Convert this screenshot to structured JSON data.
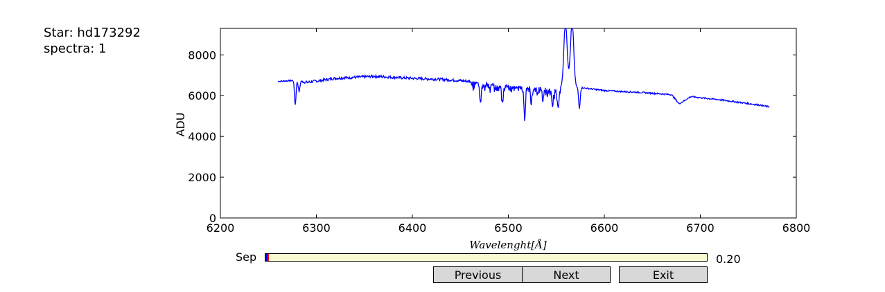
{
  "header": {
    "star_label": "Star: hd173292",
    "spectra_label": "spectra: 1"
  },
  "chart_data": {
    "type": "line",
    "title": "",
    "xlabel": "Wavelenght[Å]",
    "ylabel": "ADU",
    "xlim": [
      6200,
      6800
    ],
    "ylim": [
      0,
      9300
    ],
    "xticks": [
      6200,
      6300,
      6400,
      6500,
      6600,
      6700,
      6800
    ],
    "yticks": [
      0,
      2000,
      4000,
      6000,
      8000
    ],
    "grid": false,
    "series": [
      {
        "color": "#0000ff",
        "x_range": [
          6260,
          6772
        ],
        "keypoints": [
          [
            6260,
            6700
          ],
          [
            6278,
            6750
          ],
          [
            6290,
            6650
          ],
          [
            6320,
            6850
          ],
          [
            6360,
            6950
          ],
          [
            6400,
            6850
          ],
          [
            6430,
            6800
          ],
          [
            6460,
            6700
          ],
          [
            6500,
            6500
          ],
          [
            6530,
            6400
          ],
          [
            6550,
            6300
          ],
          [
            6557,
            6500
          ],
          [
            6600,
            6250
          ],
          [
            6640,
            6150
          ],
          [
            6670,
            6050
          ],
          [
            6678,
            5600
          ],
          [
            6690,
            5950
          ],
          [
            6720,
            5800
          ],
          [
            6760,
            5550
          ],
          [
            6772,
            5450
          ]
        ],
        "absorption_lines": [
          [
            6278,
            5550
          ],
          [
            6282,
            6200
          ],
          [
            6471,
            5700
          ],
          [
            6494,
            5700
          ],
          [
            6517,
            5000
          ],
          [
            6524,
            5850
          ],
          [
            6536,
            5900
          ],
          [
            6546,
            5600
          ],
          [
            6552,
            5500
          ],
          [
            6574,
            5350
          ]
        ],
        "emission_peaks": [
          [
            6559.5,
            9300
          ],
          [
            6566.5,
            9300
          ]
        ],
        "emission_dip": [
          6563,
          7000
        ]
      }
    ]
  },
  "controls": {
    "slider": {
      "label": "Sep",
      "value": 0.2,
      "value_text": "0.20",
      "fill_color": "#0000ff",
      "track_color": "#fafad2",
      "handle_color": "#ff0000"
    },
    "buttons": {
      "previous": "Previous",
      "next": "Next",
      "exit": "Exit"
    }
  }
}
